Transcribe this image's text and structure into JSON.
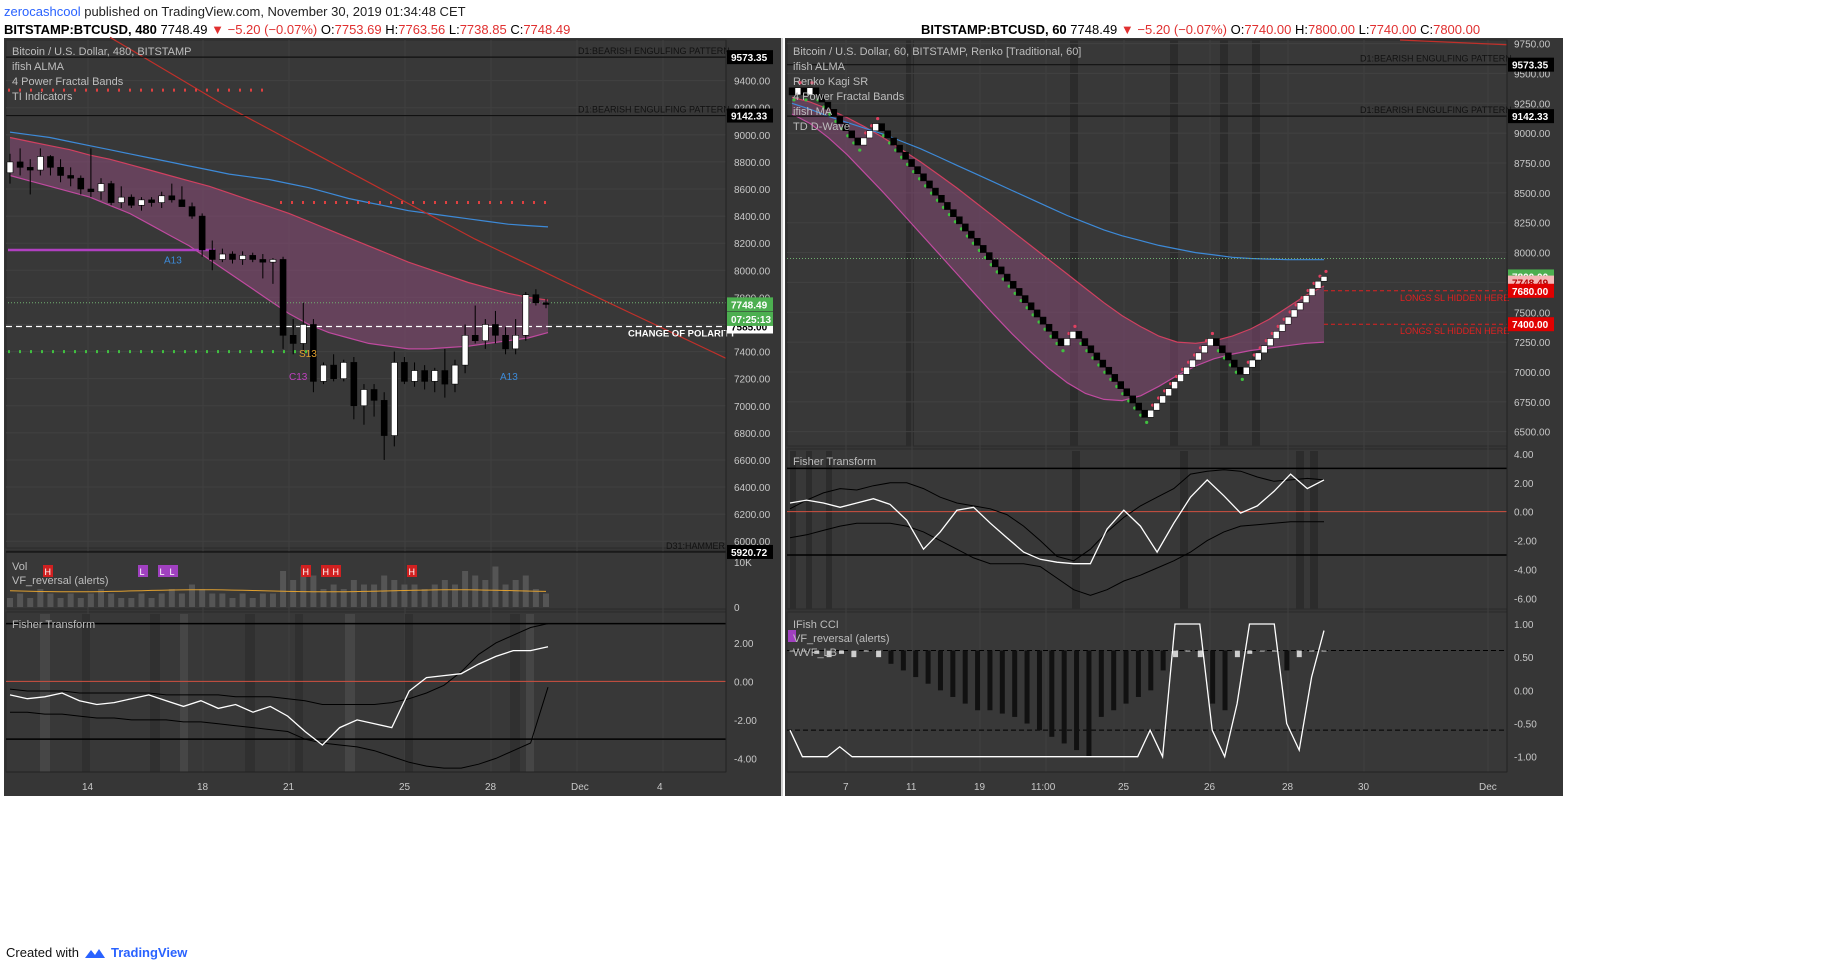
{
  "header": {
    "user": "zerocashcool",
    "published": " published on TradingView.com, November 30, 2019 01:34:48 CET"
  },
  "left_quote": {
    "symbol": "BITSTAMP:BTCUSD, 480",
    "last": "7748.49",
    "change": "▼ −5.20 (−0.07%)",
    "o_label": "O:",
    "o": "7753.69",
    "h_label": "H:",
    "h": "7763.56",
    "l_label": "L:",
    "l": "7738.85",
    "c_label": "C:",
    "c": "7748.49"
  },
  "right_quote": {
    "symbol": "BITSTAMP:BTCUSD, 60",
    "last": "7748.49",
    "change": "▼ −5.20 (−0.07%)",
    "o_label": "O:",
    "o": "7740.00",
    "h_label": "H:",
    "h": "7800.00",
    "l_label": "L:",
    "l": "7740.00",
    "c_label": "C:",
    "c": "7800.00"
  },
  "footer": {
    "created": "Created with",
    "brand": "TradingView"
  },
  "colors": {
    "bg": "#363636",
    "grid": "#444444",
    "up": "#ffffff",
    "down": "#000000",
    "accent": "#2962ff",
    "neg": "#e03030"
  },
  "chart_data": [
    {
      "id": "left-price",
      "type": "candlestick",
      "legend": [
        "Bitcoin / U.S. Dollar, 480, BITSTAMP",
        "ifish ALMA",
        "4 Power Fractal Bands",
        "TI Indicators"
      ],
      "y_ticks": [
        "9400.00",
        "9200.00",
        "9000.00",
        "8800.00",
        "8600.00",
        "8400.00",
        "8200.00",
        "8000.00",
        "7800.00",
        "7600.00",
        "7400.00",
        "7200.00",
        "7000.00",
        "6800.00",
        "6600.00",
        "6400.00",
        "6200.00",
        "6000.00"
      ],
      "ylim": [
        5950,
        9700
      ],
      "candles": [
        [
          8720,
          8860,
          8640,
          8800
        ],
        [
          8800,
          8900,
          8700,
          8760
        ],
        [
          8760,
          8820,
          8560,
          8740
        ],
        [
          8740,
          8900,
          8700,
          8840
        ],
        [
          8840,
          8850,
          8700,
          8760
        ],
        [
          8760,
          8820,
          8650,
          8700
        ],
        [
          8700,
          8760,
          8620,
          8680
        ],
        [
          8680,
          8700,
          8560,
          8600
        ],
        [
          8600,
          8900,
          8540,
          8580
        ],
        [
          8580,
          8680,
          8520,
          8640
        ],
        [
          8640,
          8660,
          8480,
          8500
        ],
        [
          8500,
          8620,
          8460,
          8540
        ],
        [
          8540,
          8560,
          8460,
          8480
        ],
        [
          8480,
          8540,
          8440,
          8520
        ],
        [
          8520,
          8540,
          8470,
          8500
        ],
        [
          8500,
          8580,
          8460,
          8550
        ],
        [
          8550,
          8640,
          8500,
          8520
        ],
        [
          8520,
          8620,
          8480,
          8470
        ],
        [
          8470,
          8500,
          8380,
          8400
        ],
        [
          8400,
          8420,
          8100,
          8150
        ],
        [
          8150,
          8220,
          8000,
          8080
        ],
        [
          8080,
          8160,
          8060,
          8120
        ],
        [
          8120,
          8140,
          8050,
          8080
        ],
        [
          8080,
          8140,
          8040,
          8110
        ],
        [
          8110,
          8130,
          8060,
          8080
        ],
        [
          8080,
          8120,
          7940,
          8060
        ],
        [
          8060,
          8090,
          7900,
          8080
        ],
        [
          8080,
          8100,
          7420,
          7520
        ],
        [
          7520,
          7640,
          7380,
          7460
        ],
        [
          7460,
          7760,
          7380,
          7600
        ],
        [
          7600,
          7640,
          7100,
          7180
        ],
        [
          7180,
          7320,
          7160,
          7300
        ],
        [
          7300,
          7380,
          7180,
          7200
        ],
        [
          7200,
          7340,
          7180,
          7320
        ],
        [
          7320,
          7360,
          6900,
          7000
        ],
        [
          7000,
          7160,
          6860,
          7120
        ],
        [
          7120,
          7160,
          6920,
          7040
        ],
        [
          7040,
          7100,
          6600,
          6780
        ],
        [
          6780,
          7400,
          6700,
          7320
        ],
        [
          7320,
          7360,
          7160,
          7180
        ],
        [
          7180,
          7320,
          7140,
          7260
        ],
        [
          7260,
          7300,
          7120,
          7180
        ],
        [
          7180,
          7280,
          7100,
          7260
        ],
        [
          7260,
          7420,
          7060,
          7160
        ],
        [
          7160,
          7340,
          7100,
          7300
        ],
        [
          7300,
          7600,
          7240,
          7520
        ],
        [
          7520,
          7740,
          7460,
          7480
        ],
        [
          7480,
          7640,
          7420,
          7600
        ],
        [
          7600,
          7700,
          7460,
          7520
        ],
        [
          7520,
          7580,
          7380,
          7420
        ],
        [
          7420,
          7640,
          7380,
          7520
        ],
        [
          7520,
          7840,
          7480,
          7820
        ],
        [
          7820,
          7860,
          7740,
          7760
        ],
        [
          7760,
          7790,
          7720,
          7748
        ]
      ],
      "levels": [
        {
          "price": 9573.35,
          "label": "9573.35",
          "text": "D1:BEARISH ENGULFING PATTERN"
        },
        {
          "price": 9142.33,
          "label": "9142.33",
          "text": "D1:BEARISH ENGULFING PATTERN"
        },
        {
          "price": 5920.72,
          "label": "5920.72",
          "text": "D31:HAMMER"
        },
        {
          "price": 7585.0,
          "label": "7585.00",
          "text": "CHANGE OF POLARITY"
        }
      ],
      "price_tags": [
        {
          "price": 7748.49,
          "label": "7748.49",
          "color": "#4caf50"
        },
        {
          "price": 7700.0,
          "label": "07:25:13",
          "color": "#4caf50"
        }
      ],
      "band_upper": [
        8980,
        8950,
        8920,
        8890,
        8850,
        8820,
        8780,
        8740,
        8700,
        8660,
        8620,
        8570,
        8520,
        8470,
        8420,
        8360,
        8300,
        8240,
        8180,
        8120,
        8060,
        8010,
        7960,
        7910,
        7870,
        7830,
        7800,
        7780
      ],
      "band_lower": [
        8700,
        8660,
        8620,
        8580,
        8540,
        8480,
        8420,
        8340,
        8260,
        8180,
        8080,
        7980,
        7880,
        7780,
        7680,
        7600,
        7540,
        7500,
        7460,
        7440,
        7420,
        7420,
        7430,
        7440,
        7460,
        7480,
        7500,
        7540
      ],
      "blue_ma": [
        9020,
        9000,
        8980,
        8950,
        8920,
        8890,
        8860,
        8830,
        8800,
        8770,
        8740,
        8710,
        8690,
        8670,
        8640,
        8610,
        8570,
        8530,
        8500,
        8470,
        8440,
        8420,
        8400,
        8380,
        8360,
        8340,
        8330,
        8320
      ],
      "red_line": [
        9720,
        9620,
        9520,
        9420,
        9320,
        9220,
        9130,
        9040,
        8950,
        8860,
        8770,
        8680,
        8590,
        8500,
        8410,
        8320,
        8230,
        8150,
        8070,
        7990,
        7910,
        7830,
        7750,
        7670,
        7590,
        7510,
        7430,
        7350
      ],
      "x_ticks": [
        "14",
        "18",
        "21",
        "25",
        "28",
        "Dec",
        "4"
      ],
      "markers": [
        "A13",
        "C13",
        "S13",
        "A13"
      ]
    },
    {
      "id": "left-volume",
      "type": "bar",
      "legend": [
        "Vol",
        "VF_reversal (alerts)"
      ],
      "y_ticks": [
        "10K",
        "0"
      ],
      "badges": [
        "H",
        "L",
        "L",
        "L",
        "H",
        "H",
        "H",
        "H"
      ],
      "values": [
        2,
        3,
        2,
        4,
        3,
        2,
        3,
        2,
        3,
        4,
        3,
        2,
        2,
        3,
        2,
        3,
        4,
        3,
        5,
        4,
        3,
        3,
        2,
        3,
        2,
        3,
        3,
        8,
        6,
        9,
        7,
        4,
        5,
        4,
        6,
        5,
        5,
        7,
        6,
        5,
        5,
        4,
        5,
        6,
        5,
        8,
        7,
        6,
        9,
        5,
        6,
        7,
        4,
        3
      ]
    },
    {
      "id": "left-fisher",
      "type": "line",
      "legend": [
        "Fisher Transform"
      ],
      "y_ticks": [
        "2.00",
        "0.00",
        "-2.00",
        "-4.00"
      ],
      "ylim": [
        -4.6,
        3.5
      ],
      "fisher": [
        -0.7,
        -0.9,
        -0.8,
        -0.6,
        -1.0,
        -1.2,
        -1.1,
        -0.9,
        -0.7,
        -1.0,
        -1.3,
        -1.0,
        -1.4,
        -1.2,
        -1.6,
        -1.3,
        -1.8,
        -2.6,
        -3.3,
        -2.4,
        -2.0,
        -2.2,
        -2.4,
        -0.5,
        0.2,
        0.3,
        0.4,
        0.9,
        1.3,
        1.6,
        1.6,
        1.8
      ],
      "upper": [
        -0.4,
        -0.5,
        -0.5,
        -0.5,
        -0.6,
        -0.6,
        -0.6,
        -0.6,
        -0.6,
        -0.7,
        -0.7,
        -0.7,
        -0.7,
        -0.8,
        -0.8,
        -0.8,
        -0.9,
        -1.0,
        -1.2,
        -1.2,
        -1.2,
        -1.2,
        -1.1,
        -0.9,
        -0.6,
        -0.2,
        0.5,
        1.4,
        2.0,
        2.4,
        2.8,
        3.0
      ],
      "lower": [
        -1.6,
        -1.6,
        -1.7,
        -1.7,
        -1.8,
        -1.9,
        -1.9,
        -2.0,
        -2.0,
        -2.0,
        -2.1,
        -2.1,
        -2.2,
        -2.3,
        -2.4,
        -2.5,
        -2.6,
        -3.0,
        -3.2,
        -3.3,
        -3.4,
        -3.6,
        -3.9,
        -4.2,
        -4.4,
        -4.5,
        -4.5,
        -4.3,
        -4.0,
        -3.6,
        -3.2,
        -0.3
      ],
      "x_ticks": [
        "14",
        "18",
        "21",
        "25",
        "28",
        "Dec",
        "4"
      ]
    },
    {
      "id": "right-price",
      "type": "renko",
      "legend": [
        "Bitcoin / U.S. Dollar, 60, BITSTAMP, Renko [Traditional, 60]",
        "ifish ALMA",
        "Renko Kagi SR",
        "4 Power Fractal Bands",
        "ifish MA",
        "TD D-Wave"
      ],
      "y_ticks": [
        "9750.00",
        "9500.00",
        "9250.00",
        "9000.00",
        "8750.00",
        "8500.00",
        "8250.00",
        "8000.00",
        "7750.00",
        "7500.00",
        "7250.00",
        "7000.00",
        "6750.00",
        "6500.00"
      ],
      "ylim": [
        6380,
        9780
      ],
      "renko": [
        9320,
        9380,
        9320,
        9380,
        9320,
        9260,
        9200,
        9140,
        9080,
        9020,
        8960,
        8900,
        8960,
        9020,
        9080,
        9020,
        8960,
        8900,
        8840,
        8780,
        8720,
        8660,
        8600,
        8540,
        8480,
        8420,
        8360,
        8300,
        8240,
        8180,
        8120,
        8060,
        8000,
        7940,
        7880,
        7820,
        7760,
        7700,
        7640,
        7580,
        7520,
        7460,
        7400,
        7340,
        7280,
        7220,
        7280,
        7340,
        7280,
        7220,
        7160,
        7100,
        7040,
        6980,
        6920,
        6860,
        6800,
        6740,
        6680,
        6620,
        6680,
        6740,
        6800,
        6860,
        6920,
        6980,
        7040,
        7100,
        7160,
        7220,
        7280,
        7220,
        7160,
        7100,
        7040,
        6980,
        7040,
        7100,
        7160,
        7220,
        7280,
        7340,
        7400,
        7460,
        7520,
        7580,
        7640,
        7700,
        7760,
        7800
      ],
      "levels": [
        {
          "price": 9573.35,
          "label": "9573.35",
          "text": "D1:BEARISH ENGULFING PATTERN"
        },
        {
          "price": 9142.33,
          "label": "9142.33",
          "text": "D1:BEARISH ENGULFING PATTERN"
        }
      ],
      "price_tags": [
        {
          "price": 7800.0,
          "label": "7800.00",
          "color": "#4caf50"
        },
        {
          "price": 7748.49,
          "label": "7748.49",
          "color": "#f4b6b6"
        },
        {
          "price": 7680.0,
          "label": "7680.00",
          "color": "#e00000",
          "text": "LONGS SL HIDDEN HERE"
        },
        {
          "price": 7400.0,
          "label": "7400.00",
          "color": "#e00000",
          "text": "LONGS SL HIDDEN HERE"
        }
      ],
      "band_upper": [
        9300,
        9260,
        9200,
        9130,
        9050,
        8960,
        8860,
        8760,
        8650,
        8540,
        8420,
        8300,
        8180,
        8060,
        7940,
        7820,
        7700,
        7580,
        7470,
        7380,
        7300,
        7250,
        7240,
        7260,
        7300,
        7360,
        7440,
        7540,
        7640,
        7720
      ],
      "band_lower": [
        9160,
        9080,
        8960,
        8820,
        8660,
        8500,
        8330,
        8160,
        7990,
        7820,
        7650,
        7480,
        7320,
        7170,
        7030,
        6910,
        6820,
        6770,
        6760,
        6800,
        6880,
        6970,
        7050,
        7110,
        7150,
        7180,
        7200,
        7220,
        7240,
        7250
      ],
      "blue_ma": [
        9250,
        9200,
        9140,
        9090,
        9040,
        8990,
        8930,
        8870,
        8800,
        8730,
        8660,
        8590,
        8520,
        8450,
        8380,
        8310,
        8250,
        8190,
        8140,
        8100,
        8060,
        8030,
        8000,
        7980,
        7960,
        7950,
        7945,
        7940,
        7940,
        7940
      ],
      "x_ticks": [
        "7",
        "11",
        "19",
        "11:00",
        "25",
        "26",
        "28",
        "30",
        "Dec"
      ]
    },
    {
      "id": "right-fisher",
      "type": "line",
      "legend": [
        "Fisher Transform"
      ],
      "y_ticks": [
        "4.00",
        "2.00",
        "0.00",
        "-2.00",
        "-4.00",
        "-6.00"
      ],
      "ylim": [
        -6.6,
        4.2
      ],
      "fisher": [
        0.6,
        0.8,
        0.6,
        0.3,
        0.6,
        0.9,
        0.5,
        -0.6,
        -2.6,
        -1.4,
        0.1,
        0.3,
        -0.8,
        -1.8,
        -2.8,
        -3.3,
        -3.5,
        -3.6,
        -3.6,
        -1.2,
        0.1,
        -1.0,
        -2.8,
        -0.8,
        1.0,
        2.2,
        1.1,
        -0.1,
        0.4,
        1.4,
        2.6,
        1.6,
        2.2
      ],
      "upper": [
        0.2,
        0.8,
        1.3,
        1.6,
        1.5,
        1.8,
        2.0,
        2.0,
        1.6,
        1.0,
        0.6,
        0.4,
        0.2,
        -0.2,
        -1.0,
        -2.0,
        -3.1,
        -3.4,
        -2.6,
        -1.4,
        -0.4,
        0.4,
        1.0,
        1.6,
        2.6,
        2.8,
        2.9,
        2.8,
        2.4,
        2.1,
        2.2,
        2.3,
        2.2
      ],
      "lower": [
        -1.8,
        -1.6,
        -1.3,
        -1.0,
        -0.8,
        -0.8,
        -0.8,
        -1.0,
        -1.4,
        -2.0,
        -2.6,
        -3.2,
        -3.6,
        -3.6,
        -3.6,
        -3.8,
        -4.6,
        -5.4,
        -5.8,
        -5.4,
        -4.8,
        -4.4,
        -3.9,
        -3.4,
        -2.8,
        -2.0,
        -1.4,
        -1.0,
        -0.9,
        -0.8,
        -0.7,
        -0.7,
        -0.7
      ],
      "x_ticks": [
        "7",
        "11",
        "19",
        "11:00",
        "25",
        "26",
        "28",
        "30",
        "Dec"
      ]
    },
    {
      "id": "right-cci",
      "type": "bar",
      "legend": [
        "IFish CCI",
        "VF_reversal (alerts)",
        "WVF_LB"
      ],
      "y_ticks": [
        "1.00",
        "0.50",
        "0.00",
        "-0.50",
        "-1.00"
      ],
      "ylim": [
        -1.2,
        1.15
      ],
      "ifish": [
        -0.6,
        -1.0,
        -1.0,
        -1.0,
        -0.85,
        -1.0,
        -1.0,
        -1.0,
        -1.0,
        -1.0,
        -1.0,
        -1.0,
        -1.0,
        -1.0,
        -1.0,
        -1.0,
        -1.0,
        -1.0,
        -1.0,
        -1.0,
        -1.0,
        -1.0,
        -1.0,
        -1.0,
        -1.0,
        -1.0,
        -1.0,
        -1.0,
        -1.0,
        -0.6,
        -1.0,
        1.0,
        1.0,
        1.0,
        -0.6,
        -1.0,
        -0.2,
        1.0,
        1.0,
        1.0,
        -0.5,
        -0.9,
        0.2,
        0.9
      ],
      "bars": [
        0.6,
        0.6,
        0.55,
        0.5,
        0.55,
        0.5,
        0.6,
        0.5,
        0.4,
        0.3,
        0.2,
        0.1,
        0.0,
        -0.1,
        -0.2,
        -0.3,
        -0.3,
        -0.35,
        -0.4,
        -0.5,
        -0.6,
        -0.7,
        -0.8,
        -0.9,
        -1.0,
        -0.4,
        -0.3,
        -0.2,
        -0.1,
        0.0,
        0.3,
        0.5,
        0.6,
        0.5,
        -0.2,
        -0.3,
        0.5,
        0.55,
        0.6,
        0.6,
        0.3,
        0.5,
        0.6,
        0.6
      ],
      "x_ticks": [
        "7",
        "11",
        "19",
        "11:00",
        "25",
        "26",
        "28",
        "30",
        "Dec"
      ]
    }
  ]
}
